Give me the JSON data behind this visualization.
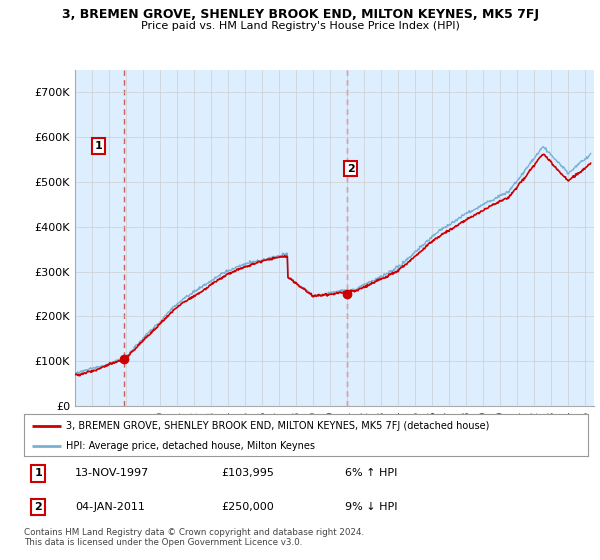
{
  "title_line1": "3, BREMEN GROVE, SHENLEY BROOK END, MILTON KEYNES, MK5 7FJ",
  "title_line2": "Price paid vs. HM Land Registry's House Price Index (HPI)",
  "ylim": [
    0,
    750000
  ],
  "yticks": [
    0,
    100000,
    200000,
    300000,
    400000,
    500000,
    600000,
    700000
  ],
  "ytick_labels": [
    "£0",
    "£100K",
    "£200K",
    "£300K",
    "£400K",
    "£500K",
    "£600K",
    "£700K"
  ],
  "legend_line1": "3, BREMEN GROVE, SHENLEY BROOK END, MILTON KEYNES, MK5 7FJ (detached house)",
  "legend_line2": "HPI: Average price, detached house, Milton Keynes",
  "line1_color": "#cc0000",
  "line2_color": "#7ab0d4",
  "bg_color": "#ddeeff",
  "plot_bg": "#ddeeff",
  "point1_date": 1997.87,
  "point1_value": 103995,
  "point2_date": 2011.01,
  "point2_value": 250000,
  "footer": "Contains HM Land Registry data © Crown copyright and database right 2024.\nThis data is licensed under the Open Government Licence v3.0.",
  "background_color": "#ffffff",
  "grid_color": "#cccccc"
}
